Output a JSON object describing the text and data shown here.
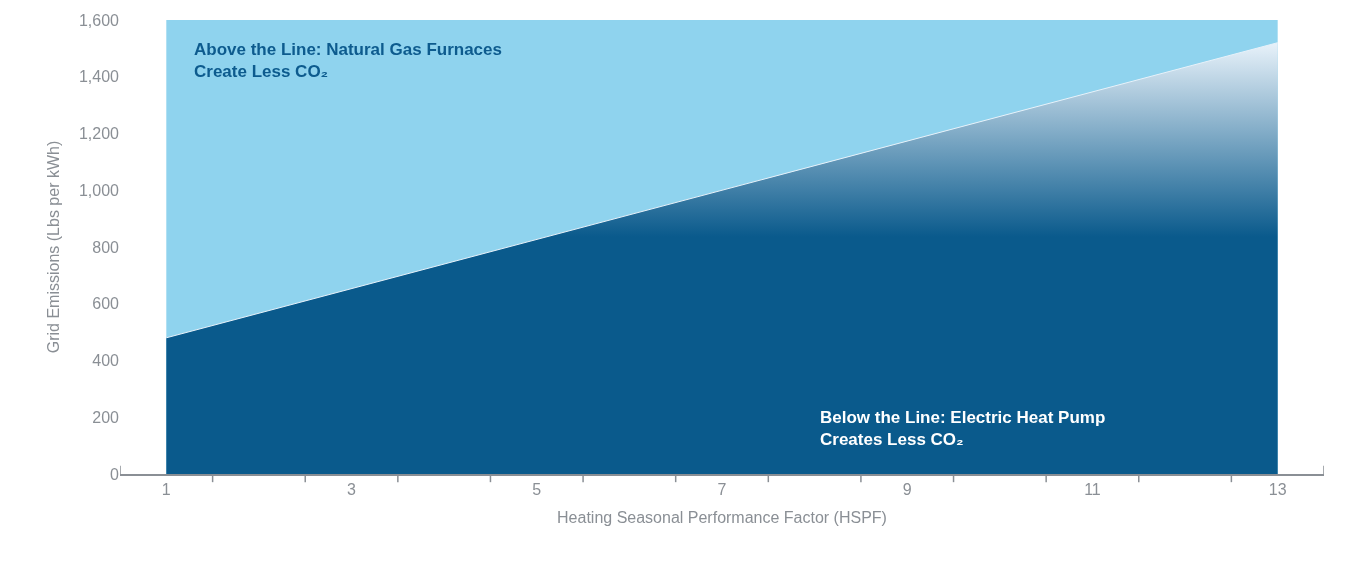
{
  "chart_data": {
    "type": "area",
    "xlabel": "Heating Seasonal Performance Factor (HSPF)",
    "ylabel": "Grid Emissions (Lbs per kWh)",
    "x": [
      1,
      13
    ],
    "series": [
      {
        "color": "#0a5a8c",
        "values": [
          480,
          1520
        ]
      }
    ],
    "xlim": [
      0.5,
      13.5
    ],
    "xticks": [
      1,
      {
        "value": 1.5,
        "label": null
      },
      {
        "value": 2.5,
        "label": null
      },
      3,
      {
        "value": 3.5,
        "label": null
      },
      {
        "value": 4.5,
        "label": null
      },
      5,
      {
        "value": 5.5,
        "label": null
      },
      {
        "value": 6.5,
        "label": null
      },
      7,
      {
        "value": 7.5,
        "label": null
      },
      {
        "value": 8.5,
        "label": null
      },
      9,
      {
        "value": 9.5,
        "label": null
      },
      {
        "value": 10.5,
        "label": null
      },
      11,
      {
        "value": 11.5,
        "label": null
      },
      {
        "value": 12.5,
        "label": null
      },
      13
    ],
    "ylim": [
      0,
      1600
    ],
    "yticks": [
      {
        "value": 0,
        "label": "0"
      },
      {
        "value": 200,
        "label": "200"
      },
      {
        "value": 400,
        "label": "400"
      },
      {
        "value": 600,
        "label": "600"
      },
      {
        "value": 800,
        "label": "800"
      },
      {
        "value": 1000,
        "label": "1,000"
      },
      {
        "value": 1200,
        "label": "1,200"
      },
      {
        "value": 1400,
        "label": "1,400"
      },
      {
        "value": 1600,
        "label": "1,600"
      }
    ],
    "bands": [
      {
        "axis": "x",
        "from": 1,
        "to": 13,
        "color": "#8fd3ee"
      }
    ],
    "annotations": [
      "Above the Line: Natural Gas Furnaces\nCreate Less CO₂",
      "Below the Line: Electric Heat Pump\nCreates Less CO₂"
    ],
    "grid": false
  }
}
